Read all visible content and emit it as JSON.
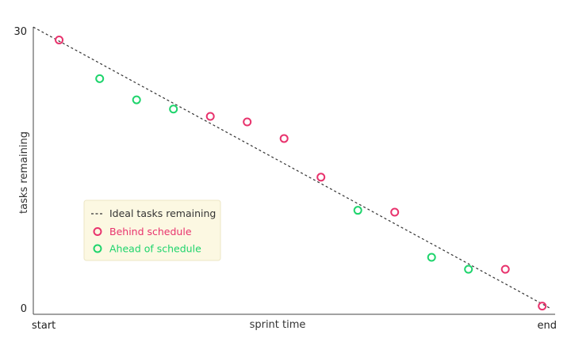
{
  "chart_data": {
    "type": "scatter",
    "ylabel": "tasks remaining",
    "xlabel": "sprint time",
    "x_tick_labels": {
      "start": "start",
      "end": "end"
    },
    "y_tick_labels": {
      "min": "0",
      "max": "30"
    },
    "ylim": [
      0,
      30
    ],
    "xlim": [
      0,
      14
    ],
    "ideal_line": {
      "name": "Ideal tasks remaining",
      "from": [
        0,
        30.5
      ],
      "to": [
        14,
        0
      ]
    },
    "series": [
      {
        "name": "Behind schedule",
        "color": "#e8336d",
        "points": [
          {
            "x": 0.7,
            "y": 29.1
          },
          {
            "x": 4.8,
            "y": 20.8
          },
          {
            "x": 5.8,
            "y": 20.2
          },
          {
            "x": 6.8,
            "y": 18.4
          },
          {
            "x": 7.8,
            "y": 14.2
          },
          {
            "x": 9.8,
            "y": 10.4
          },
          {
            "x": 12.8,
            "y": 4.2
          },
          {
            "x": 13.8,
            "y": 0.2
          }
        ]
      },
      {
        "name": "Ahead of schedule",
        "color": "#1ed46c",
        "points": [
          {
            "x": 1.8,
            "y": 24.9
          },
          {
            "x": 2.8,
            "y": 22.6
          },
          {
            "x": 3.8,
            "y": 21.6
          },
          {
            "x": 8.8,
            "y": 10.6
          },
          {
            "x": 10.8,
            "y": 5.5
          },
          {
            "x": 11.8,
            "y": 4.2
          }
        ]
      }
    ],
    "legend_position": "left-lower-middle",
    "grid": false
  },
  "legend": {
    "ideal_label": "Ideal tasks remaining",
    "behind_label": "Behind schedule",
    "ahead_label": "Ahead of schedule"
  },
  "colors": {
    "behind": "#e8336d",
    "ahead": "#1ed46c",
    "legend_bg": "#fcf8e2",
    "axis": "#444444"
  }
}
